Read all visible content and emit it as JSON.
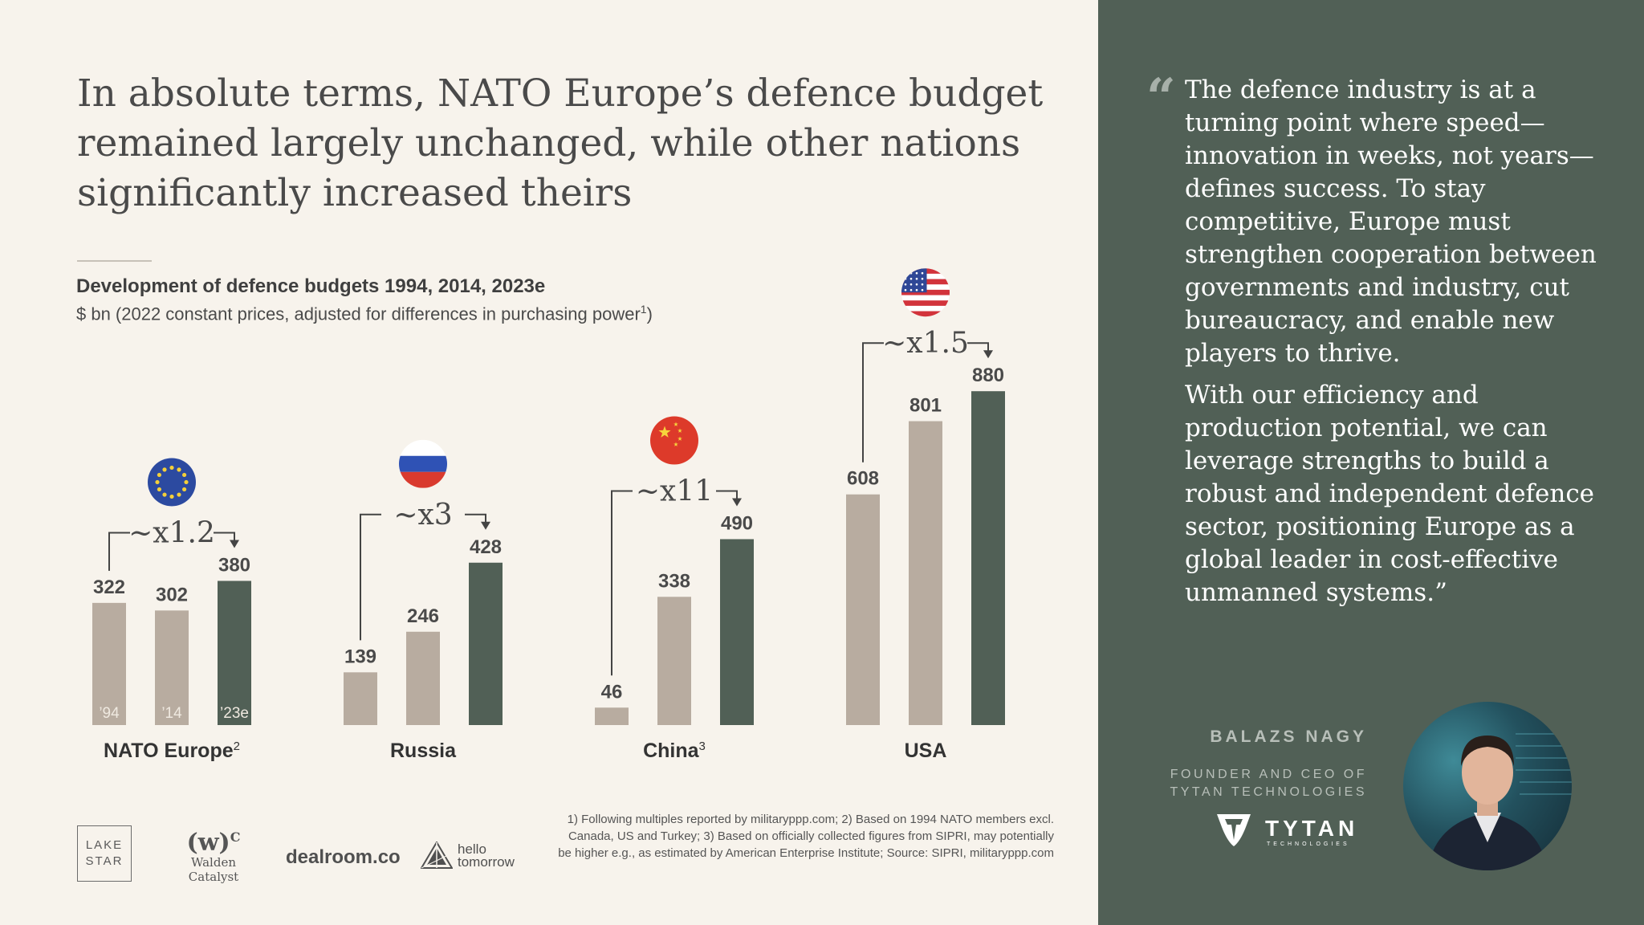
{
  "title": "In absolute terms, NATO Europe’s defence budget remained largely unchanged, while other nations significantly increased theirs",
  "subtitle": "Development of defence budgets 1994, 2014, 2023e",
  "units": "$ bn (2022 constant prices, adjusted for differences in purchasing power",
  "units_sup": "1",
  "units_end": ")",
  "colors": {
    "past": "#b8aca0",
    "current": "#516056",
    "panel": "#516056",
    "background": "#f7f3ec"
  },
  "chart_data": {
    "type": "bar",
    "series_years": [
      "’94",
      "’14",
      "’23e"
    ],
    "groups": [
      {
        "name": "NATO Europe",
        "sup": "2",
        "values": [
          322,
          302,
          380
        ],
        "multiple": "~x1.2",
        "flag": "eu-flag-icon"
      },
      {
        "name": "Russia",
        "sup": "",
        "values": [
          139,
          246,
          428
        ],
        "multiple": "~x3",
        "flag": "russia-flag-icon"
      },
      {
        "name": "China",
        "sup": "3",
        "values": [
          46,
          338,
          490
        ],
        "multiple": "~x11",
        "flag": "china-flag-icon"
      },
      {
        "name": "USA",
        "sup": "",
        "values": [
          608,
          801,
          880
        ],
        "multiple": "~x1.5",
        "flag": "usa-flag-icon"
      }
    ],
    "ylim": [
      0,
      880
    ]
  },
  "footnote": "1) Following multiples reported by militaryppp.com; 2) Based on 1994 NATO members excl. Canada, US and Turkey; 3) Based on officially collected figures from SIPRI, may potentially be higher e.g., as estimated by American Enterprise Institute; Source: SIPRI, militaryppp.com",
  "logos": {
    "lake_star_line1": "LAKE",
    "lake_star_line2": "STAR",
    "walden_mark": "(w)",
    "walden_sup": "C",
    "walden_name": "Walden Catalyst",
    "dealroom": "dealroom.co",
    "hello_line1": "hello",
    "hello_line2": "tomorrow"
  },
  "quote": {
    "mark": "“",
    "paragraph1": "The defence industry is at a turning point where speed—innovation in weeks, not years—defines success. To stay competitive, Europe must strengthen cooperation between governments and industry, cut bureaucracy, and enable new players to thrive.",
    "paragraph2": "With our efficiency and production potential, we can leverage strengths to build a robust and independent defence sector, positioning Europe as a global leader in cost-effective unmanned systems.”"
  },
  "speaker": {
    "name": "BALAZS NAGY",
    "role_line1": "FOUNDER AND CEO OF",
    "role_line2": "TYTAN TECHNOLOGIES",
    "company_logo": "TYTAN",
    "company_logo_sub": "TECHNOLOGIES"
  }
}
